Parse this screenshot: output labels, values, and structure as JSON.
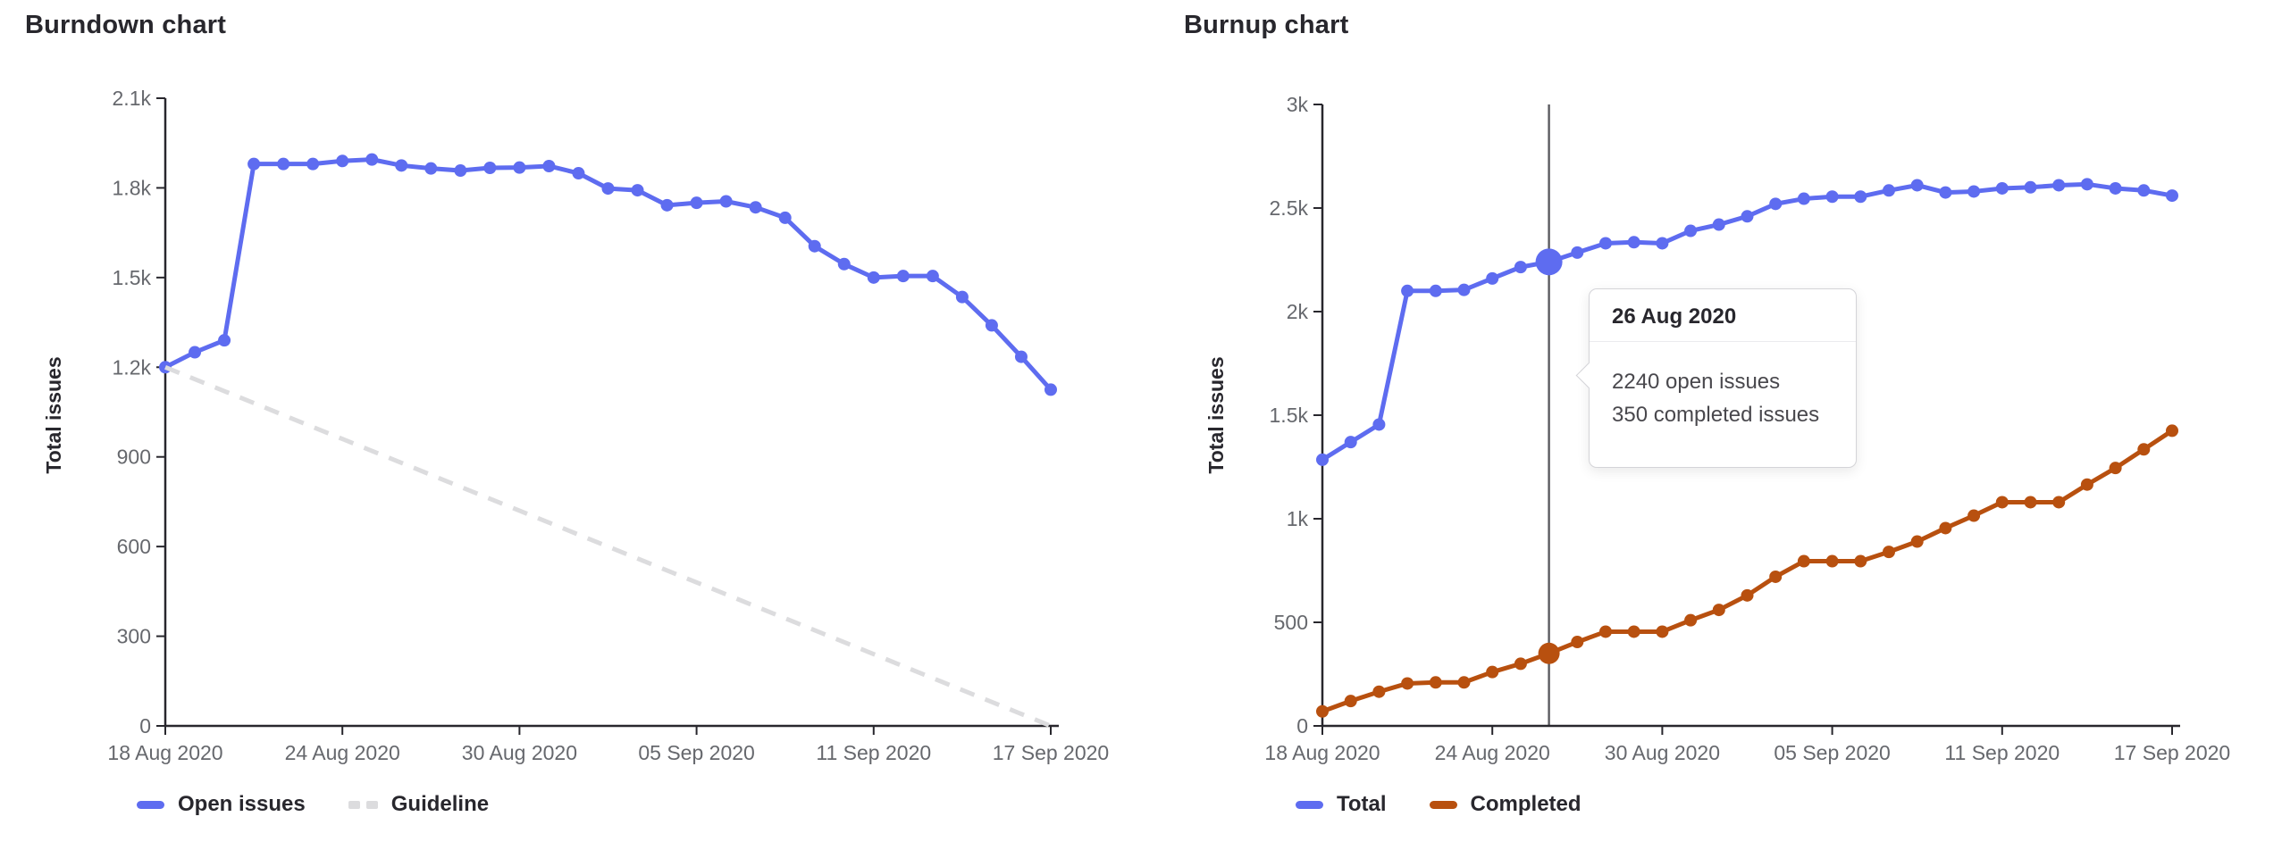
{
  "palette": {
    "blue": "#5e6cf0",
    "orange": "#b8500f",
    "guideline_gray": "#dcdcde",
    "hover_line_gray": "#5b5b60",
    "axis_color": "#28272d",
    "tick_text_color": "#66686d",
    "title_color": "#28272d"
  },
  "tooltip": {
    "date": "26 Aug 2020",
    "open_text": "2240 open issues",
    "completed_text": "350 completed issues"
  },
  "chart_data": [
    {
      "type": "line",
      "title": "Burndown chart",
      "ylabel": "Total issues",
      "xlabel": "",
      "ylim": [
        0,
        2100
      ],
      "grid": false,
      "legend_position": "bottom-left",
      "x": [
        "18 Aug 2020",
        "19 Aug 2020",
        "20 Aug 2020",
        "21 Aug 2020",
        "22 Aug 2020",
        "23 Aug 2020",
        "24 Aug 2020",
        "25 Aug 2020",
        "26 Aug 2020",
        "27 Aug 2020",
        "28 Aug 2020",
        "29 Aug 2020",
        "30 Aug 2020",
        "31 Aug 2020",
        "01 Sep 2020",
        "02 Sep 2020",
        "03 Sep 2020",
        "04 Sep 2020",
        "05 Sep 2020",
        "06 Sep 2020",
        "07 Sep 2020",
        "08 Sep 2020",
        "09 Sep 2020",
        "10 Sep 2020",
        "11 Sep 2020",
        "12 Sep 2020",
        "13 Sep 2020",
        "14 Sep 2020",
        "15 Sep 2020",
        "16 Sep 2020",
        "17 Sep 2020"
      ],
      "x_tick_labels": [
        "18 Aug 2020",
        "24 Aug 2020",
        "30 Aug 2020",
        "05 Sep 2020",
        "11 Sep 2020",
        "17 Sep 2020"
      ],
      "x_tick_days": [
        0,
        6,
        12,
        18,
        24,
        30
      ],
      "y_ticks": {
        "values": [
          0,
          300,
          600,
          900,
          1200,
          1500,
          1800,
          2100
        ],
        "labels": [
          "0",
          "300",
          "600",
          "900",
          "1.2k",
          "1.5k",
          "1.8k",
          "2.1k"
        ]
      },
      "series": [
        {
          "name": "Open issues",
          "color": "#5e6cf0",
          "marker": "line",
          "values": [
            1200,
            1250,
            1290,
            1880,
            1880,
            1880,
            1890,
            1895,
            1875,
            1865,
            1858,
            1867,
            1868,
            1873,
            1849,
            1798,
            1792,
            1742,
            1750,
            1755,
            1735,
            1700,
            1605,
            1545,
            1500,
            1505,
            1505,
            1435,
            1340,
            1235,
            1125
          ]
        },
        {
          "name": "Guideline",
          "color": "#dcdcde",
          "marker": "dashes",
          "style": "dashed",
          "endpoints": [
            1200,
            0
          ]
        }
      ]
    },
    {
      "type": "line",
      "title": "Burnup chart",
      "ylabel": "Total issues",
      "xlabel": "",
      "ylim": [
        0,
        3000
      ],
      "grid": false,
      "legend_position": "bottom-left",
      "x": [
        "18 Aug 2020",
        "19 Aug 2020",
        "20 Aug 2020",
        "21 Aug 2020",
        "22 Aug 2020",
        "23 Aug 2020",
        "24 Aug 2020",
        "25 Aug 2020",
        "26 Aug 2020",
        "27 Aug 2020",
        "28 Aug 2020",
        "29 Aug 2020",
        "30 Aug 2020",
        "31 Aug 2020",
        "01 Sep 2020",
        "02 Sep 2020",
        "03 Sep 2020",
        "04 Sep 2020",
        "05 Sep 2020",
        "06 Sep 2020",
        "07 Sep 2020",
        "08 Sep 2020",
        "09 Sep 2020",
        "10 Sep 2020",
        "11 Sep 2020",
        "12 Sep 2020",
        "13 Sep 2020",
        "14 Sep 2020",
        "15 Sep 2020",
        "16 Sep 2020",
        "17 Sep 2020"
      ],
      "x_tick_labels": [
        "18 Aug 2020",
        "24 Aug 2020",
        "30 Aug 2020",
        "05 Sep 2020",
        "11 Sep 2020",
        "17 Sep 2020"
      ],
      "x_tick_days": [
        0,
        6,
        12,
        18,
        24,
        30
      ],
      "y_ticks": {
        "values": [
          0,
          500,
          1000,
          1500,
          2000,
          2500,
          3000
        ],
        "labels": [
          "0",
          "500",
          "1k",
          "1.5k",
          "2k",
          "2.5k",
          "3k"
        ]
      },
      "highlight": {
        "day": 8,
        "date": "26 Aug 2020",
        "open_issues": 2240,
        "completed_issues": 350
      },
      "series": [
        {
          "name": "Total",
          "color": "#5e6cf0",
          "marker": "line",
          "highlight_value": 2240,
          "highlight_radius": 15,
          "values": [
            1285,
            1370,
            1455,
            2100,
            2100,
            2105,
            2160,
            2215,
            2240,
            2285,
            2330,
            2335,
            2330,
            2390,
            2420,
            2460,
            2520,
            2545,
            2555,
            2555,
            2585,
            2610,
            2575,
            2580,
            2595,
            2600,
            2610,
            2615,
            2595,
            2585,
            2560
          ]
        },
        {
          "name": "Completed",
          "color": "#b8500f",
          "marker": "line",
          "highlight_value": 350,
          "highlight_radius": 12,
          "values": [
            70,
            120,
            165,
            205,
            210,
            210,
            260,
            300,
            350,
            405,
            455,
            455,
            455,
            510,
            560,
            630,
            720,
            795,
            795,
            795,
            840,
            890,
            955,
            1015,
            1080,
            1080,
            1080,
            1165,
            1245,
            1335,
            1425
          ]
        }
      ]
    }
  ]
}
